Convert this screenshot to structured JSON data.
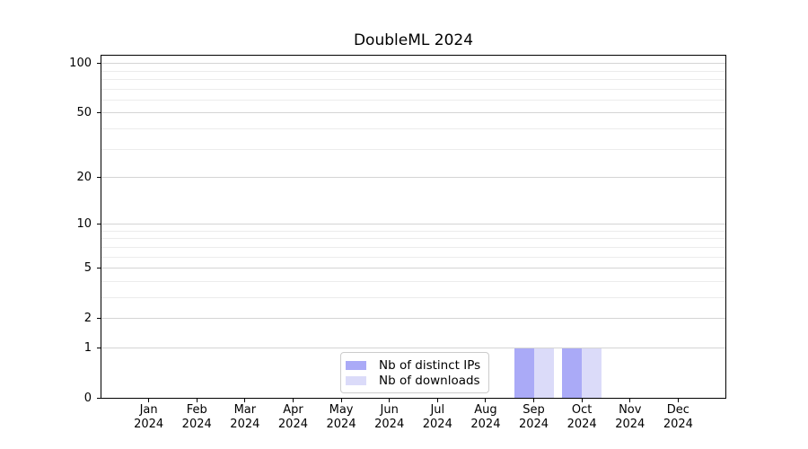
{
  "chart_data": {
    "type": "bar",
    "title": "DoubleML 2024",
    "categories": [
      "Jan 2024",
      "Feb 2024",
      "Mar 2024",
      "Apr 2024",
      "May 2024",
      "Jun 2024",
      "Jul 2024",
      "Aug 2024",
      "Sep 2024",
      "Oct 2024",
      "Nov 2024",
      "Dec 2024"
    ],
    "series": [
      {
        "name": "Nb of distinct IPs",
        "color": "#aaaaf7",
        "values": [
          0,
          0,
          0,
          0,
          0,
          0,
          0,
          0,
          1,
          1,
          0,
          0
        ]
      },
      {
        "name": "Nb of downloads",
        "color": "#dbdbf9",
        "values": [
          0,
          0,
          0,
          0,
          0,
          0,
          0,
          0,
          1,
          1,
          0,
          0
        ]
      }
    ],
    "y_axis": {
      "scale": "log1p",
      "ticks": [
        0,
        1,
        2,
        5,
        10,
        20,
        50,
        100
      ],
      "minor_ticks": [
        3,
        4,
        6,
        7,
        8,
        9,
        30,
        40,
        60,
        70,
        80,
        90
      ],
      "ylim": [
        0,
        112.8
      ]
    },
    "xlabel": "",
    "ylabel": "",
    "grid": true,
    "legend_position": "lower center",
    "colors": {
      "major_grid": "#d4d4d4",
      "minor_grid": "#ececec",
      "axis": "#000000",
      "text": "#000000",
      "legend_border": "#cccccc",
      "background": "#ffffff"
    }
  }
}
